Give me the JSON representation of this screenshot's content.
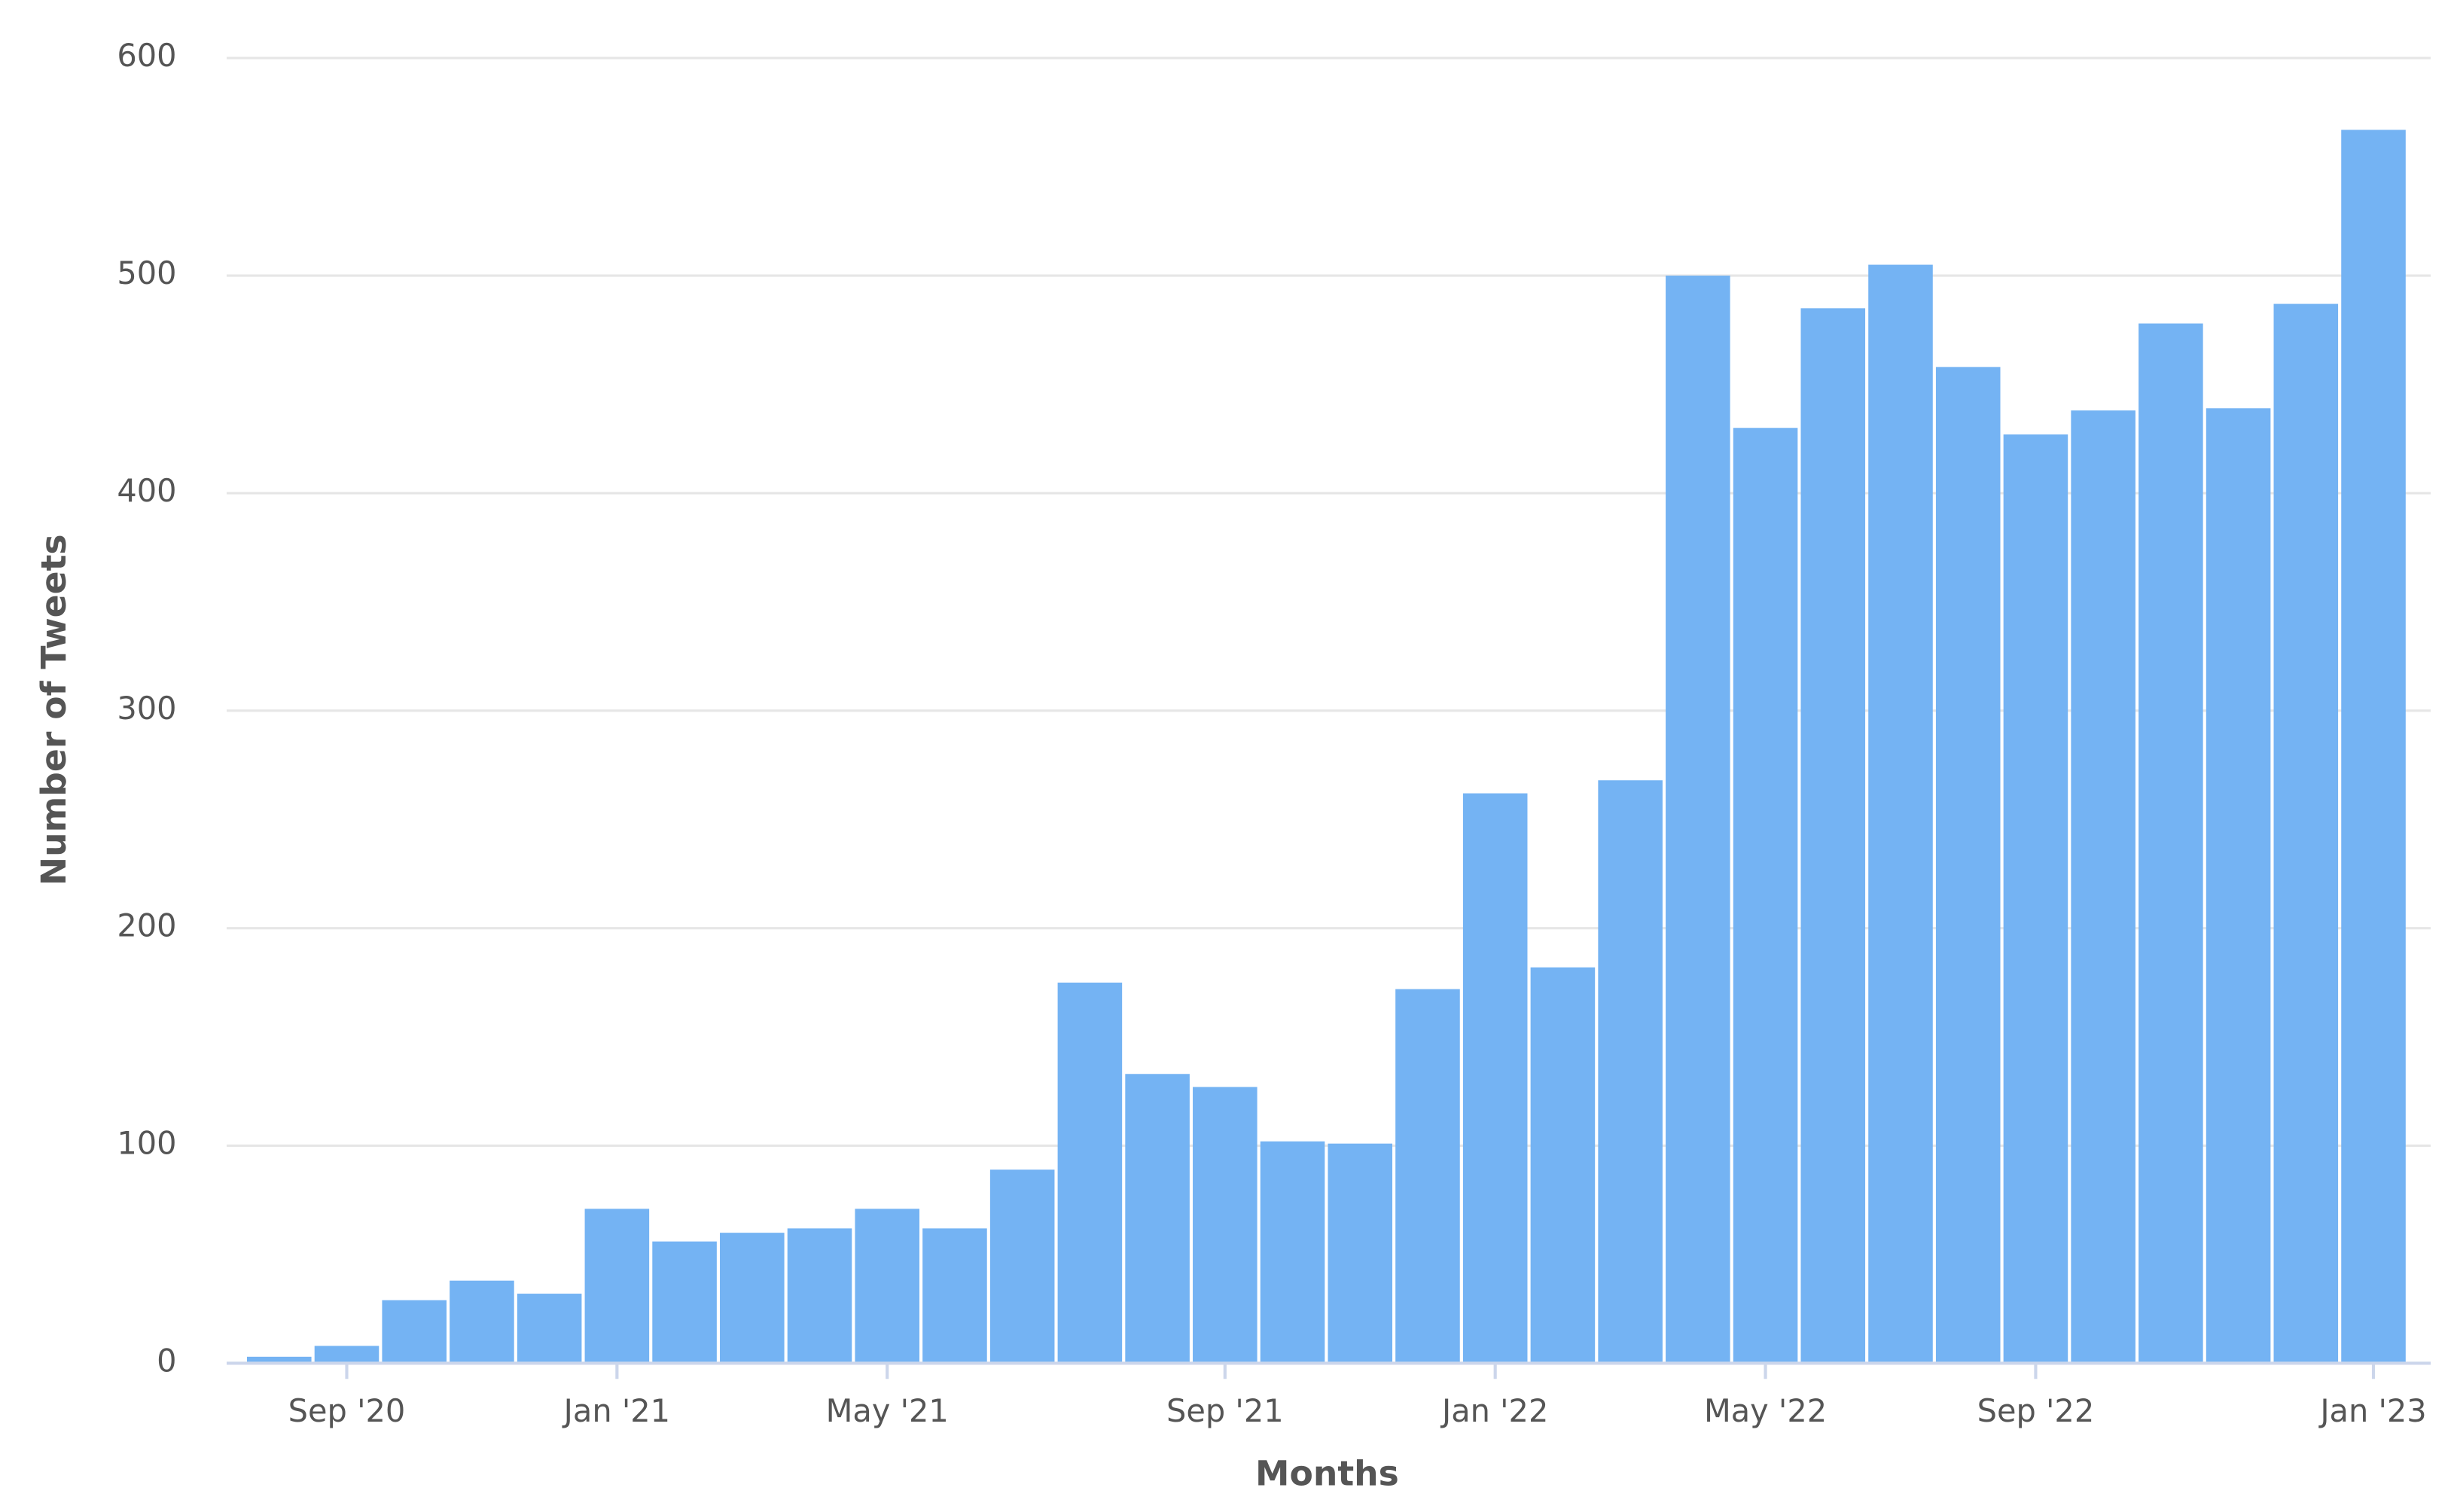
{
  "chart_data": {
    "type": "bar",
    "x_label": "Months",
    "y_label": "Number of Tweets",
    "categories": [
      null,
      "Sep '20",
      null,
      null,
      null,
      "Jan '21",
      null,
      null,
      null,
      "May '21",
      null,
      null,
      null,
      null,
      "Sep '21",
      null,
      null,
      null,
      "Jan '22",
      null,
      null,
      null,
      "May '22",
      null,
      null,
      null,
      "Sep '22",
      null,
      null,
      null,
      null,
      "Jan '23"
    ],
    "values": [
      3,
      8,
      29,
      38,
      32,
      71,
      56,
      60,
      62,
      71,
      62,
      89,
      175,
      133,
      127,
      102,
      101,
      172,
      262,
      182,
      268,
      500,
      430,
      485,
      505,
      458,
      427,
      438,
      478,
      439,
      487,
      567
    ],
    "color": "#74b3f3",
    "ylim": [
      0,
      600
    ],
    "yticks": [
      0,
      100,
      200,
      300,
      400,
      500,
      600
    ],
    "grid": true
  }
}
